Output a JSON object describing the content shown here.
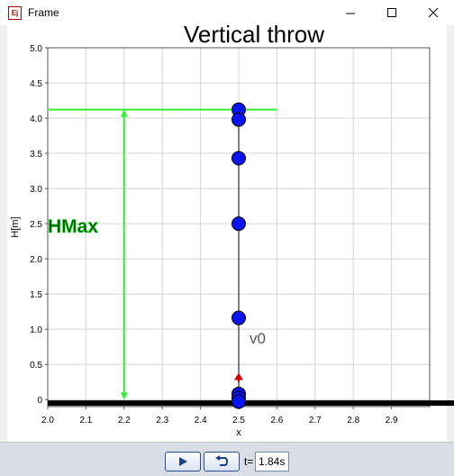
{
  "window": {
    "title": "Frame",
    "icon": "ejs-app-icon"
  },
  "plot": {
    "title": "Vertical throw",
    "xlabel": "x",
    "ylabel": "H[m]",
    "hmax_label": "HMax",
    "v0_label": "v0"
  },
  "toolbar": {
    "play_icon": "play-icon",
    "reset_icon": "reset-icon",
    "time_label": "t=",
    "time_value": "1.84s"
  },
  "colors": {
    "ball": "#0a14ee",
    "hmax_line": "#33ee33",
    "hmax_text": "#006000",
    "v0_arrow": "#cc0000",
    "ground": "#000000"
  },
  "chart_data": {
    "type": "scatter",
    "title": "Vertical throw",
    "xlabel": "x",
    "ylabel": "H[m]",
    "xlim": [
      2.0,
      3.0
    ],
    "ylim": [
      -0.1,
      5.0
    ],
    "xticks": [
      "2.0",
      "2.1",
      "2.2",
      "2.3",
      "2.4",
      "2.5",
      "2.6",
      "2.7",
      "2.8",
      "2.9"
    ],
    "yticks": [
      "0",
      "0.5",
      "1.0",
      "1.5",
      "2.0",
      "2.5",
      "3.0",
      "3.5",
      "4.0",
      "4.5",
      "5.0"
    ],
    "grid": true,
    "series": [
      {
        "x": [
          2.5,
          2.5,
          2.5,
          2.5,
          2.5,
          2.5,
          2.5,
          2.5
        ],
        "y": [
          4.12,
          3.98,
          3.43,
          2.5,
          1.16,
          0.08,
          0.02,
          -0.03
        ]
      }
    ],
    "hmax": 4.12,
    "hmax_arrow_x": 2.2,
    "hmax_line_x": [
      2.0,
      2.6
    ],
    "v0_arrow": {
      "x": 2.5,
      "y_from": 0.25,
      "y_to": 0.38
    },
    "trajectory_x": 2.5
  }
}
